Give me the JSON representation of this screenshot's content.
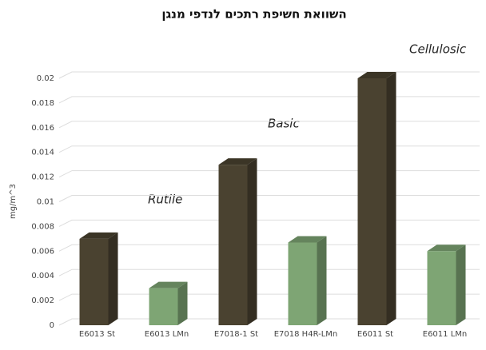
{
  "chart_data": {
    "type": "bar3d",
    "title": "השוואת חשיפת רתכים לנדפי מנגן",
    "y_label": "mg/m^3",
    "categories": [
      "E6013 St",
      "E6013 LMn",
      "E7018-1 St",
      "E7018 H4R-LMn",
      "E6011 St",
      "E6011 LMn"
    ],
    "values": [
      0.007,
      0.003,
      0.013,
      0.0067,
      0.02,
      0.006
    ],
    "colors": [
      "#4a4230",
      "#7ea574",
      "#4a4230",
      "#7ea574",
      "#4a4230",
      "#7ea574"
    ],
    "annotations": [
      "Rutile",
      "Basic",
      "Cellulosic"
    ],
    "ylim": [
      0,
      0.02
    ],
    "yticks": [
      0,
      0.002,
      0.004,
      0.006,
      0.008,
      0.01,
      0.012,
      0.014,
      0.016,
      0.018,
      0.02
    ],
    "grid": true
  }
}
